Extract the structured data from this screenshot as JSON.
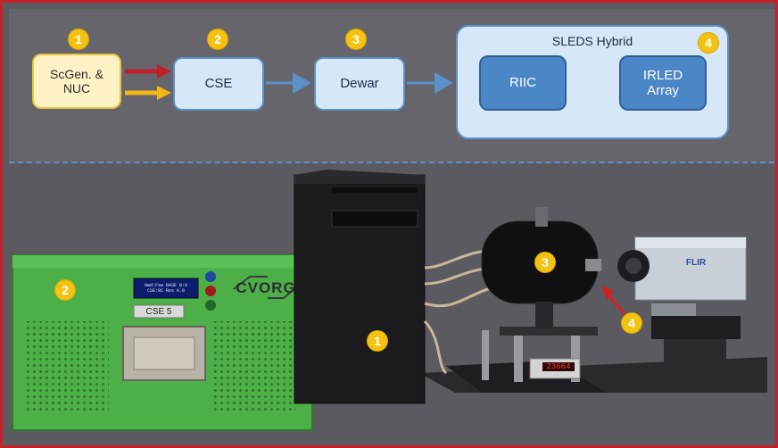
{
  "diagram": {
    "blocks": {
      "scgen": "ScGen. &\nNUC",
      "cse": "CSE",
      "dewar": "Dewar",
      "sleds": "SLEDS Hybrid",
      "riic": "RIIC",
      "irled": "IRLED\nArray"
    },
    "badges": {
      "b1": "1",
      "b2": "2",
      "b3": "3",
      "b4": "4"
    },
    "colors": {
      "signal_red": "#c0202a",
      "signal_yellow": "#f4b716",
      "flow_blue": "#5d8fc9",
      "badge": "#f4c211",
      "frame": "#c8202a"
    }
  },
  "photo": {
    "cse_display": "CSE 5",
    "logo": "CVORG",
    "screen_line1": "Hwd:Fsw BASE B:0",
    "screen_line2": "CSE:0C Res 0.0",
    "meter_value": "23664",
    "badges": {
      "p1": "1",
      "p2": "2",
      "p3": "3",
      "p4": "4"
    },
    "camera_brand": "FLIR"
  }
}
